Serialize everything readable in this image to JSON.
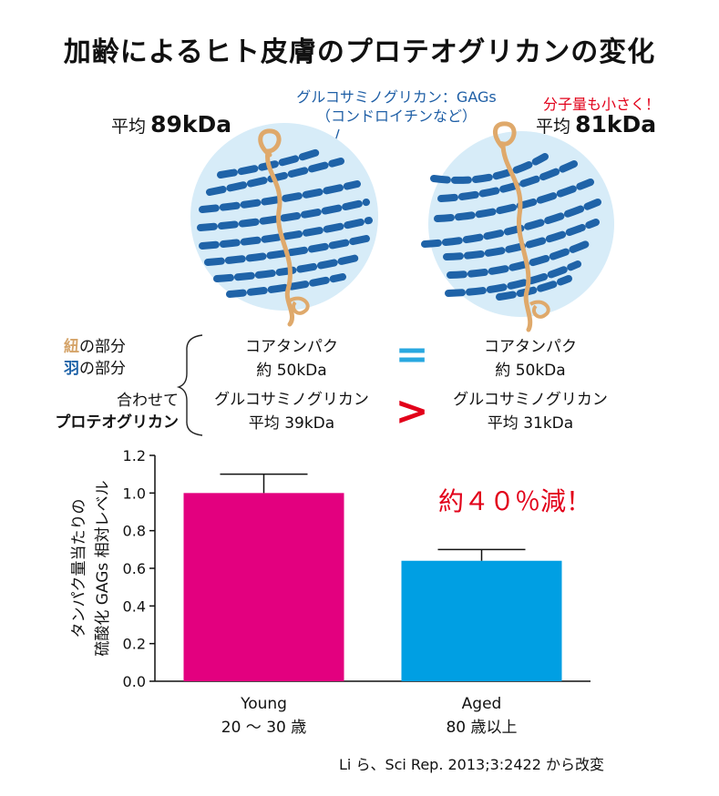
{
  "title": "加齢によるヒト皮膚のプロテオグリカンの変化",
  "diagram": {
    "young": {
      "avg_label": "平均",
      "avg_value": "89kDa"
    },
    "aged": {
      "avg_label": "平均",
      "avg_value": "81kDa",
      "note": "分子量も小さく！"
    },
    "gag_callout": [
      "グルコサミノグリカン：GAGs",
      "（コンドロイチンなど）"
    ]
  },
  "legend": {
    "core_char": "紐",
    "core_rest": "の部分",
    "gag_char": "羽",
    "gag_rest": "の部分",
    "combined": [
      "合わせて",
      "プロテオグリカン"
    ]
  },
  "comparison": {
    "young_core": [
      "コアタンパク",
      "約 50kDa"
    ],
    "aged_core": [
      "コアタンパク",
      "約 50kDa"
    ],
    "equal_symbol": "=",
    "young_gag": [
      "グルコサミノグリカン",
      "平均 39kDa"
    ],
    "aged_gag": [
      "グルコサミノグリカン",
      "平均 31kDa"
    ],
    "greater_symbol": ">"
  },
  "chart_data": {
    "type": "bar",
    "categories": [
      "Young",
      "Aged"
    ],
    "category_sublabels": [
      "20 〜 30 歳",
      "80 歳以上"
    ],
    "values": [
      1.0,
      0.64
    ],
    "error_upper": [
      1.1,
      0.7
    ],
    "colors": [
      "#e3007f",
      "#009fe3"
    ],
    "ylabel": [
      "タンパク量当たりの",
      "硫酸化 GAGs 相対レベル"
    ],
    "ylim": [
      0,
      1.2
    ],
    "yticks": [
      "0.0",
      "0.2",
      "0.4",
      "0.6",
      "0.8",
      "1.0",
      "1.2"
    ],
    "annotation": "約４０％減！",
    "annotation_color": "#e2001a"
  },
  "citation": "Li ら、Sci Rep. 2013;3:2422 から改変"
}
